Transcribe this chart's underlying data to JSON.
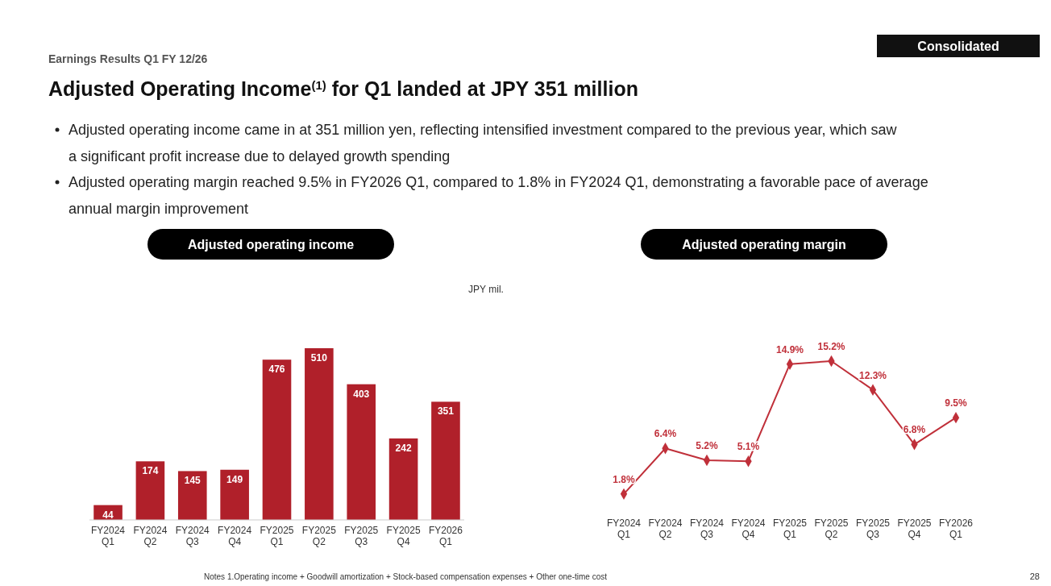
{
  "chart_data": [
    {
      "type": "other",
      "subtitle": "Earnings Results Q1 FY 12/26",
      "title": "Adjusted Operating Income$^{(1)}$ for Q1 landed at JPY 351 million",
      "annotations": [
        "Consolidated",
        "Adjusted operating income came in at 351 million yen, reflecting intensified investment compared to the previous year, which saw a significant profit increase due to delayed growth spending",
        "Adjusted operating margin reached 9.5% in FY2026 Q1, compared to 1.8% in FY2024 Q1, demonstrating a favorable pace of average annual margin improvement",
        "Notes 1.Operating income + Goodwill amortization + Stock-based compensation expenses + Other one-time cost",
        "28"
      ]
    },
    {
      "type": "bar",
      "title": "Adjusted operating income",
      "ylabel": "JPY mil.",
      "categories": [
        "FY2024 Q1",
        "FY2024 Q2",
        "FY2024 Q3",
        "FY2024 Q4",
        "FY2025 Q1",
        "FY2025 Q2",
        "FY2025 Q3",
        "FY2025 Q4",
        "FY2026 Q1"
      ],
      "values": [
        44,
        174,
        145,
        149,
        476,
        510,
        403,
        242,
        351
      ],
      "color": "#b0202a",
      "data_labels": true
    },
    {
      "type": "line",
      "title": "Adjusted operating margin",
      "categories": [
        "FY2024 Q1",
        "FY2024 Q2",
        "FY2024 Q3",
        "FY2024 Q4",
        "FY2025 Q1",
        "FY2025 Q2",
        "FY2025 Q3",
        "FY2025 Q4",
        "FY2026 Q1"
      ],
      "values": [
        1.8,
        6.4,
        5.2,
        5.1,
        14.9,
        15.2,
        12.3,
        6.8,
        9.5
      ],
      "color": "#c0303a",
      "marker": "diamond",
      "value_labels": [
        "1.8%",
        "6.4%",
        "5.2%",
        "5.1%",
        "14.9%",
        "15.2%",
        "12.3%",
        "6.8%",
        "9.5%"
      ]
    }
  ]
}
